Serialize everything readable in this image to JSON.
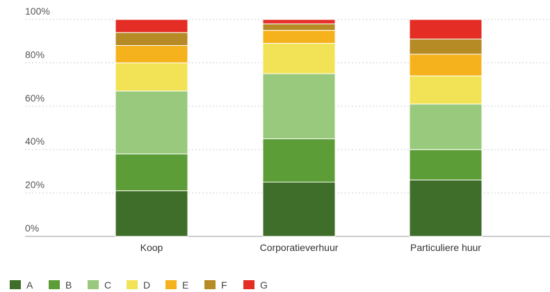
{
  "chart_data": {
    "type": "bar",
    "stacked": true,
    "categories": [
      "Koop",
      "Corporatieverhuur",
      "Particuliere huur"
    ],
    "y_ticks": [
      "0%",
      "20%",
      "40%",
      "60%",
      "80%",
      "100%"
    ],
    "ylim": [
      0,
      100
    ],
    "grid": "horizontal dotted",
    "legend_position": "bottom-left",
    "series": [
      {
        "name": "A",
        "color": "#3f6e2a",
        "values": [
          21,
          25,
          26
        ]
      },
      {
        "name": "B",
        "color": "#5d9d37",
        "values": [
          17,
          20,
          14
        ]
      },
      {
        "name": "C",
        "color": "#99c97c",
        "values": [
          29,
          30,
          21
        ]
      },
      {
        "name": "D",
        "color": "#f2e356",
        "values": [
          13,
          14,
          13
        ]
      },
      {
        "name": "E",
        "color": "#f6b21c",
        "values": [
          8,
          6,
          10
        ]
      },
      {
        "name": "F",
        "color": "#b68a24",
        "values": [
          6,
          3,
          7
        ]
      },
      {
        "name": "G",
        "color": "#e42d25",
        "values": [
          6,
          2,
          9
        ]
      }
    ]
  }
}
